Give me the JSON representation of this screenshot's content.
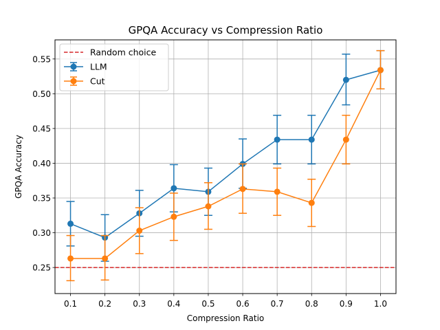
{
  "chart_data": {
    "type": "line",
    "title": "GPQA Accuracy vs Compression Ratio",
    "xlabel": "Compression Ratio",
    "ylabel": "GPQA Accuracy",
    "xlim": [
      0.055,
      1.045
    ],
    "ylim": [
      0.2125,
      0.5775
    ],
    "x_ticks": [
      "0.1",
      "0.2",
      "0.3",
      "0.4",
      "0.5",
      "0.6",
      "0.7",
      "0.8",
      "0.9",
      "1.0"
    ],
    "y_ticks": [
      "0.25",
      "0.30",
      "0.35",
      "0.40",
      "0.45",
      "0.50",
      "0.55"
    ],
    "grid": true,
    "legend_position": "top-left",
    "reference_line": {
      "name": "Random choice",
      "y": 0.25,
      "color": "#d62728",
      "style": "dashed"
    },
    "x": [
      0.1,
      0.2,
      0.3,
      0.4,
      0.5,
      0.6,
      0.7,
      0.8,
      0.9,
      1.0
    ],
    "series": [
      {
        "name": "LLM",
        "color": "#1f77b4",
        "values": [
          0.313,
          0.293,
          0.328,
          0.364,
          0.359,
          0.399,
          0.434,
          0.434,
          0.52,
          0.534
        ],
        "err_low": [
          0.281,
          0.259,
          0.295,
          0.33,
          0.325,
          0.364,
          0.399,
          0.399,
          0.484,
          0.507
        ],
        "err_high": [
          0.345,
          0.326,
          0.361,
          0.398,
          0.393,
          0.435,
          0.469,
          0.469,
          0.557,
          0.562
        ]
      },
      {
        "name": "Cut",
        "color": "#ff7f0e",
        "values": [
          0.263,
          0.263,
          0.303,
          0.323,
          0.338,
          0.363,
          0.359,
          0.343,
          0.434,
          0.534
        ],
        "err_low": [
          0.231,
          0.232,
          0.27,
          0.289,
          0.305,
          0.328,
          0.325,
          0.309,
          0.399,
          0.507
        ],
        "err_high": [
          0.296,
          0.296,
          0.336,
          0.357,
          0.372,
          0.399,
          0.393,
          0.377,
          0.469,
          0.562
        ]
      }
    ]
  }
}
